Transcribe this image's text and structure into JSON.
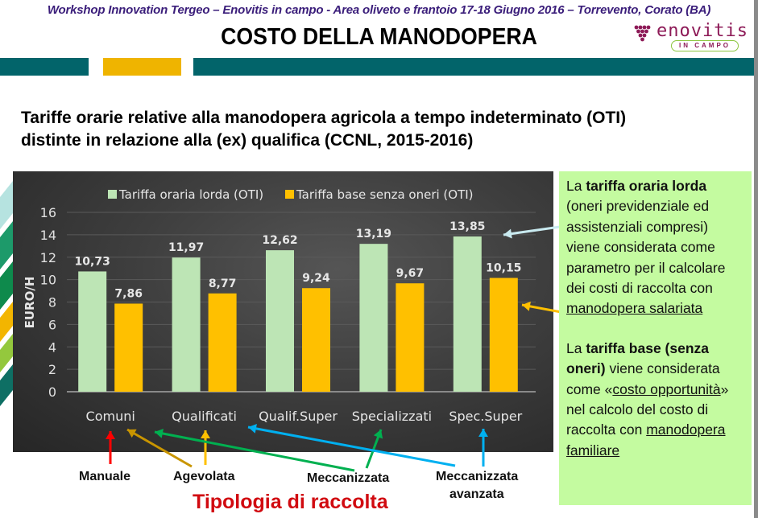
{
  "header": {
    "workshop": "Workshop Innovation Tergeo – Enovitis in campo - Area oliveto e frantoio 17-18 Giugno 2016 – Torrevento, Corato (BA)",
    "title": "COSTO DELLA MANODOPERA",
    "logo": {
      "name": "enovitis",
      "tagline": "IN CAMPO"
    }
  },
  "colors": {
    "teal": "#02646a",
    "gold": "#efb400",
    "lorda": "#bde5b5",
    "base": "#ffc000",
    "panel": "#333333",
    "box": "#c4fba0",
    "red": "#d10a10"
  },
  "subtitle": {
    "line1": "Tariffe orarie relative alla manodopera agricola a tempo indeterminato (OTI)",
    "line2": "distinte in relazione alla (ex) qualifica (CCNL, 2015-2016)"
  },
  "chart_data": {
    "type": "bar",
    "title": "",
    "xlabel": "",
    "ylabel": "EURO/H",
    "ylim": [
      0,
      16
    ],
    "yticks": [
      0,
      2,
      4,
      6,
      8,
      10,
      12,
      14,
      16
    ],
    "grid": true,
    "legend_position": "top",
    "categories": [
      "Comuni",
      "Qualificati",
      "Qualif.Super",
      "Specializzati",
      "Spec.Super"
    ],
    "series": [
      {
        "name": "Tariffa oraria lorda (OTI)",
        "color": "#bde5b5",
        "values": [
          10.73,
          11.97,
          12.62,
          13.19,
          13.85
        ],
        "labels": [
          "10,73",
          "11,97",
          "12,62",
          "13,19",
          "13,85"
        ]
      },
      {
        "name": "Tariffa base senza oneri (OTI)",
        "color": "#ffc000",
        "values": [
          7.86,
          8.77,
          9.24,
          9.67,
          10.15
        ],
        "labels": [
          "7,86",
          "8,77",
          "9,24",
          "9,67",
          "10,15"
        ]
      }
    ]
  },
  "annotations": {
    "harvest_types": [
      "Manuale",
      "Agevolata",
      "Meccanizzata",
      "Meccanizzata",
      "avanzata"
    ],
    "harvest_title": "Tipologia di raccolta",
    "arrow_colors": {
      "manuale": "#ff0000",
      "agevolata": "#c99500",
      "meccanizzata": "#00b050",
      "avanzata": "#00b0f0",
      "qualificati": "#ffc000",
      "lorda": "#c9eaf0",
      "base": "#ffc000"
    }
  },
  "info_box": {
    "p1": {
      "pre": "La ",
      "bold": "tariffa oraria lorda",
      "mid": " (oneri previdenziale ed assistenziali compresi) viene considerata come parametro per il calcolare dei costi di raccolta con ",
      "under": "manodopera salariata"
    },
    "p2": {
      "pre": "La ",
      "bold": "tariffa base (senza oneri)",
      "mid": " viene considerata come «",
      "under1": "costo opportunità",
      "mid2": "» nel calcolo del costo di raccolta con ",
      "under2": "manodopera familiare"
    }
  }
}
